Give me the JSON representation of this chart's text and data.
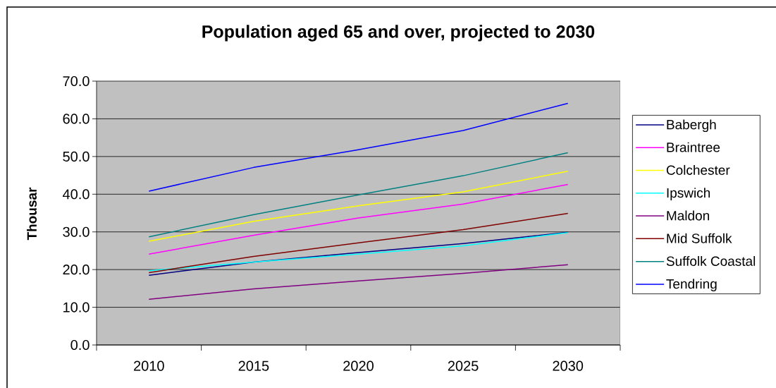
{
  "chart_data": {
    "type": "line",
    "title": "Population aged 65 and over, projected to 2030",
    "ylabel": "Thousar",
    "categories": [
      "2010",
      "2015",
      "2020",
      "2025",
      "2030"
    ],
    "series": [
      {
        "name": "Babergh",
        "color": "#000080",
        "values": [
          18.5,
          22.0,
          24.5,
          26.9,
          29.9
        ]
      },
      {
        "name": "Braintree",
        "color": "#ff00ff",
        "values": [
          24.1,
          29.1,
          33.7,
          37.4,
          42.6
        ]
      },
      {
        "name": "Colchester",
        "color": "#ffff00",
        "values": [
          27.5,
          32.8,
          36.9,
          40.6,
          46.1
        ]
      },
      {
        "name": "Ipswich",
        "color": "#00ffff",
        "values": [
          19.7,
          22.0,
          24.1,
          26.3,
          29.8
        ]
      },
      {
        "name": "Maldon",
        "color": "#800080",
        "values": [
          12.1,
          14.9,
          17.0,
          19.0,
          21.3
        ]
      },
      {
        "name": "Mid Suffolk",
        "color": "#800000",
        "values": [
          19.2,
          23.5,
          27.1,
          30.6,
          34.9
        ]
      },
      {
        "name": "Suffolk Coastal",
        "color": "#008080",
        "values": [
          28.7,
          34.6,
          39.8,
          44.9,
          51.0
        ]
      },
      {
        "name": "Tendring",
        "color": "#0000ff",
        "values": [
          40.8,
          47.1,
          51.8,
          56.9,
          64.1
        ]
      }
    ],
    "ylim": [
      0,
      70
    ],
    "yticks": [
      {
        "value": 0,
        "label": "0.0"
      },
      {
        "value": 10,
        "label": "10.0"
      },
      {
        "value": 20,
        "label": "20.0"
      },
      {
        "value": 30,
        "label": "30.0"
      },
      {
        "value": 40,
        "label": "40.0"
      },
      {
        "value": 50,
        "label": "50.0"
      },
      {
        "value": 60,
        "label": "60.0"
      },
      {
        "value": 70,
        "label": "70.0"
      }
    ],
    "grid": "y",
    "legend": "right"
  }
}
